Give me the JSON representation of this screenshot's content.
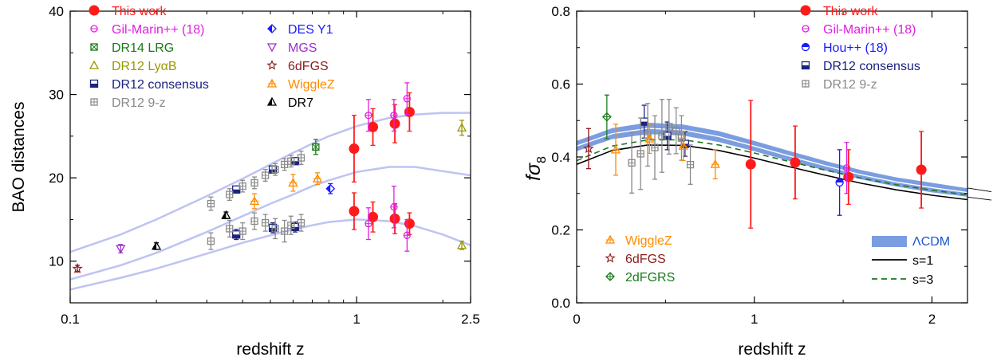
{
  "chart_data": [
    {
      "type": "scatter",
      "title": "",
      "xlabel": "redshift z",
      "ylabel": "BAO distances",
      "xscale": "log",
      "xlim": [
        0.1,
        2.5
      ],
      "ylim": [
        5,
        40
      ],
      "xticks": [
        {
          "v": 0.1,
          "label": "0.1"
        },
        {
          "v": 1,
          "label": "1"
        },
        {
          "v": 2.5,
          "label": "2.5"
        }
      ],
      "yticks": [
        10,
        20,
        30,
        40
      ],
      "grid": false,
      "legend_position": "top-left",
      "band_color": "#b7bdf2",
      "bands": [
        {
          "name": "DV",
          "points": [
            [
              0.1,
              11.1
            ],
            [
              0.15,
              13.2
            ],
            [
              0.2,
              15.0
            ],
            [
              0.3,
              17.8
            ],
            [
              0.4,
              19.9
            ],
            [
              0.5,
              21.6
            ],
            [
              0.6,
              23.0
            ],
            [
              0.7,
              24.1
            ],
            [
              0.8,
              25.0
            ],
            [
              1.0,
              26.2
            ],
            [
              1.3,
              27.2
            ],
            [
              1.6,
              27.6
            ],
            [
              2.0,
              27.8
            ],
            [
              2.5,
              27.8
            ]
          ]
        },
        {
          "name": "DM",
          "points": [
            [
              0.1,
              7.8
            ],
            [
              0.15,
              9.5
            ],
            [
              0.2,
              11.0
            ],
            [
              0.3,
              13.5
            ],
            [
              0.4,
              15.4
            ],
            [
              0.5,
              16.9
            ],
            [
              0.6,
              18.0
            ],
            [
              0.7,
              19.0
            ],
            [
              0.8,
              19.7
            ],
            [
              1.0,
              20.7
            ],
            [
              1.3,
              21.3
            ],
            [
              1.6,
              21.3
            ],
            [
              2.0,
              20.8
            ],
            [
              2.5,
              20.3
            ]
          ]
        },
        {
          "name": "DH",
          "points": [
            [
              0.1,
              6.6
            ],
            [
              0.15,
              8.0
            ],
            [
              0.2,
              9.1
            ],
            [
              0.3,
              10.9
            ],
            [
              0.4,
              12.2
            ],
            [
              0.5,
              13.1
            ],
            [
              0.6,
              13.8
            ],
            [
              0.7,
              14.3
            ],
            [
              0.8,
              14.7
            ],
            [
              1.0,
              15.0
            ],
            [
              1.3,
              14.8
            ],
            [
              1.6,
              14.2
            ],
            [
              2.0,
              13.2
            ],
            [
              2.5,
              11.9
            ]
          ]
        }
      ],
      "series": [
        {
          "name": "This work",
          "color": "#ff1a1a",
          "marker": "dot",
          "points": [
            [
              0.98,
              23.5,
              4.0
            ],
            [
              1.14,
              26.1,
              2.2
            ],
            [
              1.36,
              26.5,
              2.3
            ],
            [
              1.53,
              27.9,
              2.3
            ],
            [
              0.98,
              16.0,
              2.2
            ],
            [
              1.14,
              15.3,
              1.8
            ],
            [
              1.36,
              15.1,
              1.8
            ],
            [
              1.53,
              14.5,
              1.3
            ]
          ]
        },
        {
          "name": "Gil-Marin++ (18)",
          "color": "#e020e0",
          "marker": "circle",
          "points": [
            [
              1.1,
              27.5,
              1.9
            ],
            [
              1.35,
              27.5,
              1.9
            ],
            [
              1.5,
              29.5,
              1.9
            ],
            [
              1.1,
              14.5,
              1.9
            ],
            [
              1.35,
              16.5,
              2.5
            ],
            [
              1.5,
              13.1,
              1.9
            ]
          ]
        },
        {
          "name": "DR14 LRG",
          "color": "#1a7a1a",
          "marker": "boxx",
          "points": [
            [
              0.72,
              23.7,
              0.9
            ]
          ]
        },
        {
          "name": "DR12 LyαB",
          "color": "#999900",
          "marker": "triangle",
          "points": [
            [
              2.33,
              26.0,
              0.9
            ],
            [
              2.33,
              11.9,
              0.5
            ]
          ]
        },
        {
          "name": "DR12 consensus",
          "color": "#1a237e",
          "marker": "halfbox",
          "points": [
            [
              0.38,
              18.6,
              0.4
            ],
            [
              0.51,
              21.0,
              0.4
            ],
            [
              0.61,
              22.0,
              0.4
            ],
            [
              0.38,
              13.2,
              0.6
            ],
            [
              0.51,
              14.0,
              0.6
            ],
            [
              0.61,
              14.1,
              0.6
            ]
          ]
        },
        {
          "name": "DR12 9-z",
          "color": "#8a8a8a",
          "marker": "boxplus",
          "points": [
            [
              0.31,
              16.9,
              0.8
            ],
            [
              0.36,
              18.0,
              0.7
            ],
            [
              0.4,
              19.0,
              0.7
            ],
            [
              0.44,
              19.4,
              0.7
            ],
            [
              0.48,
              20.3,
              0.7
            ],
            [
              0.52,
              21.0,
              0.7
            ],
            [
              0.56,
              21.6,
              0.7
            ],
            [
              0.59,
              22.0,
              0.7
            ],
            [
              0.64,
              22.4,
              0.8
            ],
            [
              0.31,
              12.4,
              1.0
            ],
            [
              0.36,
              13.9,
              1.0
            ],
            [
              0.4,
              13.6,
              1.0
            ],
            [
              0.44,
              14.8,
              1.0
            ],
            [
              0.48,
              14.6,
              1.0
            ],
            [
              0.52,
              13.9,
              1.2
            ],
            [
              0.56,
              13.6,
              1.3
            ],
            [
              0.59,
              14.3,
              1.1
            ],
            [
              0.64,
              14.6,
              1.0
            ]
          ]
        },
        {
          "name": "DES Y1",
          "color": "#1a1aff",
          "marker": "halfdiamond",
          "points": [
            [
              0.81,
              18.7,
              0.6
            ]
          ]
        },
        {
          "name": "MGS",
          "color": "#9a30c8",
          "marker": "downtri",
          "points": [
            [
              0.15,
              11.5,
              0.5
            ]
          ]
        },
        {
          "name": "6dFGS",
          "color": "#8b1a1a",
          "marker": "star",
          "points": [
            [
              0.106,
              9.1,
              0.4
            ]
          ]
        },
        {
          "name": "WiggleZ",
          "color": "#ff8c00",
          "marker": "crosstri",
          "points": [
            [
              0.44,
              17.2,
              0.9
            ],
            [
              0.6,
              19.4,
              1.0
            ],
            [
              0.73,
              19.9,
              0.7
            ]
          ]
        },
        {
          "name": "DR7",
          "color": "#000000",
          "marker": "halftri",
          "points": [
            [
              0.2,
              11.8,
              0.4
            ],
            [
              0.35,
              15.5,
              0.4
            ]
          ]
        }
      ],
      "legend_col1": [
        "This work",
        "Gil-Marin++ (18)",
        "DR14 LRG",
        "DR12 LyαB",
        "DR12 consensus",
        "DR12 9-z"
      ],
      "legend_col2": [
        "DES Y1",
        "MGS",
        "6dFGS",
        "WiggleZ",
        "DR7"
      ]
    },
    {
      "type": "scatter",
      "title": "",
      "xlabel": "redshift z",
      "ylabel": "fσ",
      "ylabel_sub": "8",
      "xlim": [
        0,
        2.2
      ],
      "ylim": [
        0,
        0.8
      ],
      "xticks": [
        0,
        1,
        2
      ],
      "yticks": [
        0.0,
        0.2,
        0.4,
        0.6,
        0.8
      ],
      "grid": false,
      "legend_position": "top-right",
      "lcdm_band": {
        "color": "#7b9de0",
        "upper": [
          [
            0,
            0.445
          ],
          [
            0.2,
            0.48
          ],
          [
            0.4,
            0.495
          ],
          [
            0.6,
            0.49
          ],
          [
            0.8,
            0.472
          ],
          [
            1.0,
            0.445
          ],
          [
            1.2,
            0.417
          ],
          [
            1.4,
            0.39
          ],
          [
            1.6,
            0.365
          ],
          [
            1.8,
            0.345
          ],
          [
            2.0,
            0.33
          ],
          [
            2.2,
            0.315
          ]
        ],
        "lower": [
          [
            0,
            0.415
          ],
          [
            0.2,
            0.448
          ],
          [
            0.4,
            0.462
          ],
          [
            0.6,
            0.458
          ],
          [
            0.8,
            0.44
          ],
          [
            1.0,
            0.415
          ],
          [
            1.2,
            0.388
          ],
          [
            1.4,
            0.362
          ],
          [
            1.6,
            0.338
          ],
          [
            1.8,
            0.318
          ],
          [
            2.0,
            0.302
          ],
          [
            2.2,
            0.29
          ]
        ]
      },
      "lines": [
        {
          "name": "s=1",
          "color": "#000000",
          "dash": "",
          "points": [
            [
              0,
              0.38
            ],
            [
              0.2,
              0.418
            ],
            [
              0.4,
              0.433
            ],
            [
              0.6,
              0.432
            ],
            [
              0.8,
              0.418
            ],
            [
              1.0,
              0.397
            ],
            [
              1.2,
              0.373
            ],
            [
              1.4,
              0.35
            ],
            [
              1.6,
              0.328
            ],
            [
              1.8,
              0.31
            ],
            [
              2.0,
              0.295
            ],
            [
              2.2,
              0.283
            ]
          ]
        },
        {
          "name": "s=3",
          "color": "#1a7a1a",
          "dash": "7,5",
          "points": [
            [
              0,
              0.39
            ],
            [
              0.2,
              0.43
            ],
            [
              0.4,
              0.447
            ],
            [
              0.6,
              0.447
            ],
            [
              0.8,
              0.433
            ],
            [
              1.0,
              0.411
            ],
            [
              1.2,
              0.387
            ],
            [
              1.4,
              0.364
            ],
            [
              1.6,
              0.342
            ],
            [
              1.8,
              0.324
            ],
            [
              2.0,
              0.309
            ],
            [
              2.2,
              0.296
            ]
          ]
        }
      ],
      "series": [
        {
          "name": "This work",
          "color": "#ff1a1a",
          "marker": "dot",
          "points": [
            [
              0.98,
              0.38,
              0.175
            ],
            [
              1.23,
              0.385,
              0.1
            ],
            [
              1.53,
              0.345,
              0.075
            ],
            [
              1.94,
              0.365,
              0.105
            ]
          ]
        },
        {
          "name": "Gil-Marin++ (18)",
          "color": "#e020e0",
          "marker": "circle",
          "points": [
            [
              1.52,
              0.37,
              0.07
            ]
          ]
        },
        {
          "name": "Hou++ (18)",
          "color": "#1a1aff",
          "marker": "halfcircle",
          "points": [
            [
              1.48,
              0.33,
              0.09
            ]
          ]
        },
        {
          "name": "DR12 consensus",
          "color": "#1a237e",
          "marker": "halfbox",
          "points": [
            [
              0.38,
              0.497,
              0.045
            ],
            [
              0.51,
              0.458,
              0.038
            ],
            [
              0.61,
              0.436,
              0.034
            ]
          ]
        },
        {
          "name": "DR12 9-z",
          "color": "#8a8a8a",
          "marker": "boxplus",
          "points": [
            [
              0.31,
              0.384,
              0.083
            ],
            [
              0.36,
              0.409,
              0.098
            ],
            [
              0.4,
              0.461,
              0.086
            ],
            [
              0.44,
              0.426,
              0.087
            ],
            [
              0.48,
              0.458,
              0.1
            ],
            [
              0.52,
              0.483,
              0.075
            ],
            [
              0.56,
              0.472,
              0.063
            ],
            [
              0.59,
              0.452,
              0.061
            ],
            [
              0.64,
              0.379,
              0.054
            ]
          ]
        },
        {
          "name": "WiggleZ",
          "color": "#ff8c00",
          "marker": "crosstri",
          "points": [
            [
              0.22,
              0.42,
              0.07
            ],
            [
              0.41,
              0.45,
              0.04
            ],
            [
              0.6,
              0.43,
              0.04
            ],
            [
              0.78,
              0.38,
              0.04
            ]
          ]
        },
        {
          "name": "6dFGS",
          "color": "#8b1a1a",
          "marker": "star",
          "points": [
            [
              0.067,
              0.423,
              0.055
            ]
          ]
        },
        {
          "name": "2dFGRS",
          "color": "#1a7a1a",
          "marker": "crossdiamond",
          "points": [
            [
              0.17,
              0.51,
              0.06
            ]
          ]
        }
      ],
      "legend_top": [
        "This work",
        "Gil-Marin++ (18)",
        "Hou++ (18)",
        "DR12 consensus",
        "DR12 9-z"
      ],
      "legend_bottom_left": [
        "WiggleZ",
        "6dFGS",
        "2dFGRS"
      ],
      "legend_bottom_right": [
        {
          "label": "ΛCDM",
          "kind": "band",
          "color": "#7b9de0"
        },
        {
          "label": "s=1",
          "kind": "line",
          "color": "#000000",
          "dash": ""
        },
        {
          "label": "s=3",
          "kind": "line",
          "color": "#1a7a1a",
          "dash": "7,5"
        }
      ]
    }
  ]
}
